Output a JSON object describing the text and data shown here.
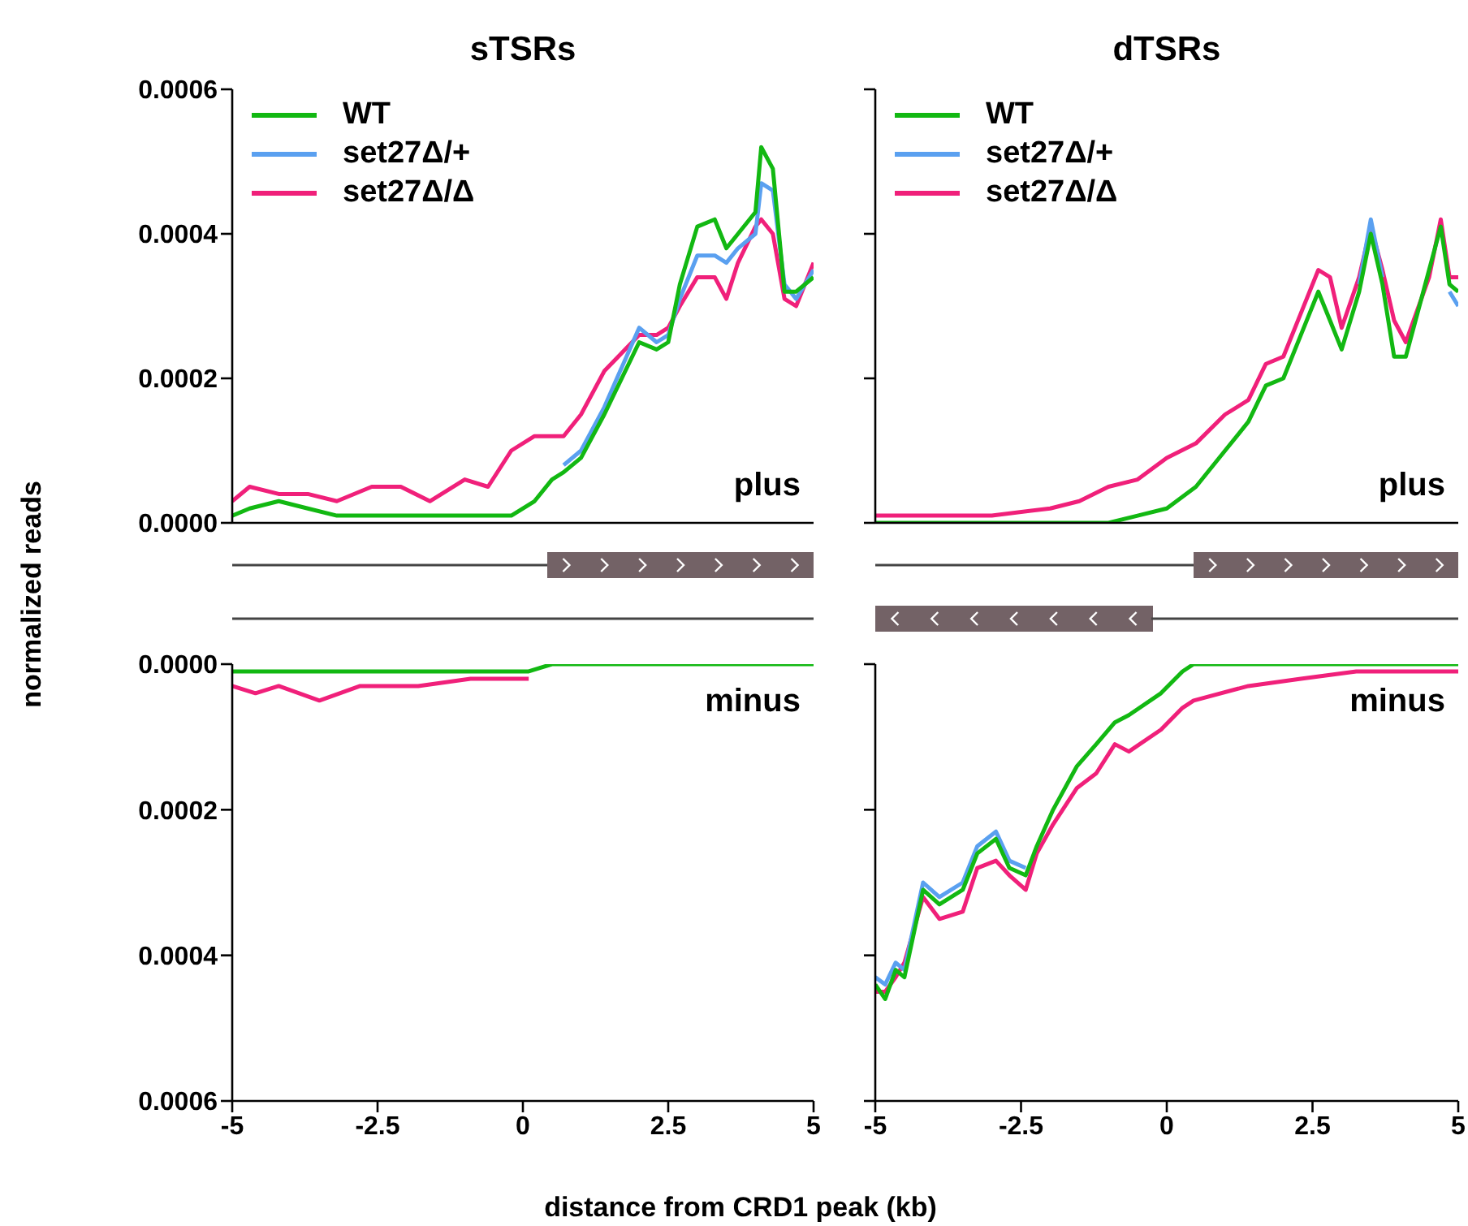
{
  "chart_data": [
    {
      "type": "line",
      "title": "sTSRs",
      "ylabel": "normalized reads",
      "annotations": [
        "plus"
      ],
      "legend": "top left",
      "tick_labels": "y",
      "xlim": [
        -5,
        5
      ],
      "ylim": [
        0,
        0.0006
      ],
      "yticks": [
        {
          "value": 0,
          "label": "0.0000"
        },
        {
          "value": 0.0002,
          "label": "0.0002"
        },
        {
          "value": 0.0004,
          "label": "0.0004"
        },
        {
          "value": 0.0006,
          "label": "0.0006"
        }
      ],
      "x": [
        -5,
        -4.7,
        -4.2,
        -3.7,
        -3.2,
        -2.6,
        -2.1,
        -1.6,
        -1,
        -0.6,
        -0.2,
        0.2,
        0.5,
        0.7,
        1,
        1.4,
        2,
        2.3,
        2.5,
        2.7,
        3,
        3.3,
        3.5,
        3.7,
        4,
        4.1,
        4.3,
        4.5,
        4.7,
        5
      ],
      "series": [
        {
          "name": "WT",
          "color": "#12b812",
          "values": [
            1e-05,
            2e-05,
            3e-05,
            2e-05,
            1e-05,
            1e-05,
            1e-05,
            1e-05,
            1e-05,
            1e-05,
            1e-05,
            3e-05,
            6e-05,
            7e-05,
            9e-05,
            0.00015,
            0.00025,
            0.00024,
            0.00025,
            0.00033,
            0.00041,
            0.00042,
            0.00038,
            0.0004,
            0.00043,
            0.00052,
            0.00049,
            0.00032,
            0.00032,
            0.00034
          ]
        },
        {
          "name": "set27Δ/+",
          "color": "#5aa0f0",
          "values": [
            null,
            null,
            null,
            null,
            null,
            null,
            null,
            null,
            null,
            null,
            null,
            null,
            null,
            8e-05,
            0.0001,
            0.00016,
            0.00027,
            0.00025,
            0.00026,
            0.00031,
            0.00037,
            0.00037,
            0.00036,
            0.00038,
            0.0004,
            0.00047,
            0.00046,
            0.00033,
            0.00031,
            0.00035
          ]
        },
        {
          "name": "set27Δ/Δ",
          "color": "#f0207a",
          "values": [
            3e-05,
            5e-05,
            4e-05,
            4e-05,
            3e-05,
            5e-05,
            5e-05,
            3e-05,
            6e-05,
            5e-05,
            0.0001,
            0.00012,
            0.00012,
            0.00012,
            0.00015,
            0.00021,
            0.00026,
            0.00026,
            0.00027,
            0.0003,
            0.00034,
            0.00034,
            0.00031,
            0.00036,
            0.00041,
            0.00042,
            0.0004,
            0.00031,
            0.0003,
            0.00036
          ]
        }
      ]
    },
    {
      "type": "line",
      "title": "dTSRs",
      "annotations": [
        "plus"
      ],
      "legend": "top left",
      "tick_labels": false,
      "xlim": [
        -5,
        5
      ],
      "ylim": [
        0,
        0.0006
      ],
      "yticks": [
        {
          "value": 0,
          "label": null
        },
        {
          "value": 0.0002,
          "label": null
        },
        {
          "value": 0.0004,
          "label": null
        },
        {
          "value": 0.0006,
          "label": null
        }
      ],
      "x": [
        -5,
        -4,
        -3,
        -2,
        -1.5,
        -1,
        -0.5,
        0,
        0.5,
        1,
        1.4,
        1.7,
        2,
        2.3,
        2.6,
        2.8,
        3,
        3.3,
        3.5,
        3.7,
        3.9,
        4.1,
        4.5,
        4.7,
        4.85,
        5
      ],
      "series": [
        {
          "name": "WT",
          "color": "#12b812",
          "values": [
            0,
            0,
            0,
            0,
            0,
            0,
            1e-05,
            2e-05,
            5e-05,
            0.0001,
            0.00014,
            0.00019,
            0.0002,
            0.00026,
            0.00032,
            0.00028,
            0.00024,
            0.00032,
            0.0004,
            0.00033,
            0.00023,
            0.00023,
            0.00035,
            0.00041,
            0.00033,
            0.00032
          ]
        },
        {
          "name": "set27Δ/+",
          "color": "#5aa0f0",
          "values": [
            null,
            null,
            null,
            null,
            null,
            null,
            null,
            null,
            null,
            null,
            null,
            null,
            null,
            null,
            null,
            null,
            null,
            0.00033,
            0.00042,
            0.00034,
            null,
            null,
            null,
            null,
            0.00032,
            0.0003
          ]
        },
        {
          "name": "set27Δ/Δ",
          "color": "#f0207a",
          "values": [
            1e-05,
            1e-05,
            1e-05,
            2e-05,
            3e-05,
            5e-05,
            6e-05,
            9e-05,
            0.00011,
            0.00015,
            0.00017,
            0.00022,
            0.00023,
            0.00029,
            0.00035,
            0.00034,
            0.00027,
            0.00034,
            0.00041,
            0.00035,
            0.00028,
            0.00025,
            0.00034,
            0.00042,
            0.00034,
            0.00034
          ]
        }
      ]
    },
    {
      "type": "line",
      "xlabel": "distance from CRD1 peak (kb)",
      "annotations": [
        "minus"
      ],
      "xlim": [
        -5,
        5
      ],
      "xticks": [
        -5,
        -2.5,
        0,
        2.5,
        5
      ],
      "ylim": [
        0.0006,
        0
      ],
      "yticks": [
        {
          "value": 0,
          "label": "0.0000"
        },
        {
          "value": 0.0002,
          "label": "0.0002"
        },
        {
          "value": 0.0004,
          "label": "0.0004"
        },
        {
          "value": 0.0006,
          "label": "0.0006"
        }
      ],
      "x": [
        -5,
        -4.6,
        -4.2,
        -3.5,
        -2.8,
        -1.8,
        -0.9,
        0.1,
        0.5,
        1.5,
        3,
        5
      ],
      "series": [
        {
          "color": "#12b812",
          "values": [
            1e-05,
            1e-05,
            1e-05,
            1e-05,
            1e-05,
            1e-05,
            1e-05,
            1e-05,
            0,
            0,
            0,
            0
          ]
        },
        {
          "color": "#f0207a",
          "values": [
            3e-05,
            4e-05,
            3e-05,
            5e-05,
            3e-05,
            3e-05,
            2e-05,
            2e-05,
            null,
            null,
            null,
            null
          ]
        }
      ]
    },
    {
      "type": "line",
      "annotations": [
        "minus"
      ],
      "tick_labels": "x",
      "xlim": [
        -5,
        5
      ],
      "xticks": [
        -5,
        -2.5,
        0,
        2.5,
        5
      ],
      "ylim": [
        0.0006,
        0
      ],
      "yticks": [
        {
          "value": 0,
          "label": null
        },
        {
          "value": 0.0002,
          "label": null
        },
        {
          "value": 0.0004,
          "label": null
        },
        {
          "value": 0.0006,
          "label": null
        }
      ],
      "x": [
        -5,
        -4.83,
        -4.65,
        -4.5,
        -4.18,
        -3.9,
        -3.5,
        -3.25,
        -2.93,
        -2.7,
        -2.42,
        -2.23,
        -1.95,
        -1.54,
        -1.21,
        -0.89,
        -0.65,
        -0.1,
        0.27,
        0.46,
        1.4,
        2.3,
        3.25,
        5
      ],
      "series": [
        {
          "color": "#12b812",
          "values": [
            0.00044,
            0.00046,
            0.00042,
            0.00043,
            0.00031,
            0.00033,
            0.00031,
            0.00026,
            0.00024,
            0.00028,
            0.00029,
            0.00025,
            0.0002,
            0.00014,
            0.00011,
            8e-05,
            7e-05,
            4e-05,
            1e-05,
            0,
            0,
            0,
            0,
            0
          ]
        },
        {
          "color": "#5aa0f0",
          "values": [
            0.00043,
            0.00044,
            0.00041,
            0.00042,
            0.0003,
            0.00032,
            0.0003,
            0.00025,
            0.00023,
            0.00027,
            0.00028,
            null,
            null,
            null,
            null,
            null,
            null,
            null,
            null,
            null,
            null,
            null,
            null,
            null
          ]
        },
        {
          "color": "#f0207a",
          "values": [
            0.00045,
            0.00045,
            0.00043,
            0.00041,
            0.00032,
            0.00035,
            0.00034,
            0.00028,
            0.00027,
            0.00029,
            0.00031,
            0.00026,
            0.00022,
            0.00017,
            0.00015,
            0.00011,
            0.00012,
            9e-05,
            6e-05,
            5e-05,
            3e-05,
            2e-05,
            1e-05,
            1e-05
          ]
        }
      ]
    }
  ]
}
